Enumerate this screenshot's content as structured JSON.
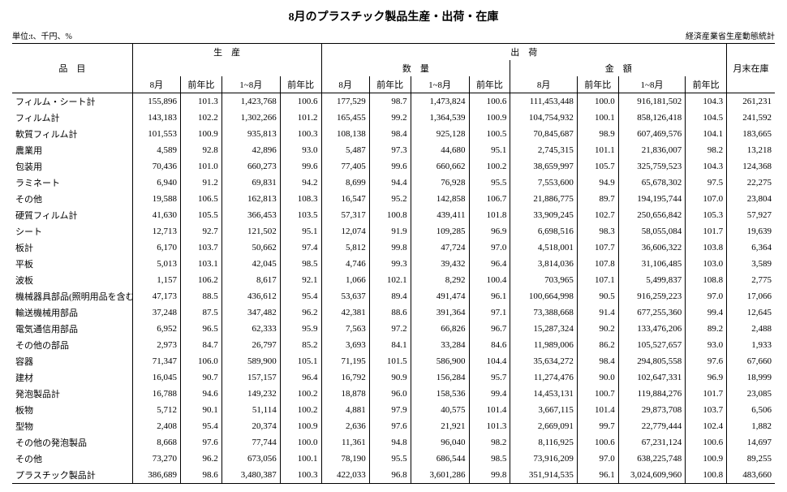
{
  "title": "8月のプラスチック製品生産・出荷・在庫",
  "unit": "単位:t、千円、%",
  "source": "経済産業省生産動態統計",
  "head": {
    "item": "品　目",
    "production": "生　産",
    "shipments": "出　荷",
    "qty": "数　量",
    "value": "金　額",
    "stock": "月末在庫",
    "aug": "8月",
    "yoy": "前年比",
    "jan_aug": "1~8月"
  },
  "rows": [
    [
      "フィルム・シート計",
      "155,896",
      "101.3",
      "1,423,768",
      "100.6",
      "177,529",
      "98.7",
      "1,473,824",
      "100.6",
      "111,453,448",
      "100.0",
      "916,181,502",
      "104.3",
      "261,231"
    ],
    [
      "フィルム計",
      "143,183",
      "102.2",
      "1,302,266",
      "101.2",
      "165,455",
      "99.2",
      "1,364,539",
      "100.9",
      "104,754,932",
      "100.1",
      "858,126,418",
      "104.5",
      "241,592"
    ],
    [
      "軟質フィルム計",
      "101,553",
      "100.9",
      "935,813",
      "100.3",
      "108,138",
      "98.4",
      "925,128",
      "100.5",
      "70,845,687",
      "98.9",
      "607,469,576",
      "104.1",
      "183,665"
    ],
    [
      "農業用",
      "4,589",
      "92.8",
      "42,896",
      "93.0",
      "5,487",
      "97.3",
      "44,680",
      "95.1",
      "2,745,315",
      "101.1",
      "21,836,007",
      "98.2",
      "13,218"
    ],
    [
      "包装用",
      "70,436",
      "101.0",
      "660,273",
      "99.6",
      "77,405",
      "99.6",
      "660,662",
      "100.2",
      "38,659,997",
      "105.7",
      "325,759,523",
      "104.3",
      "124,368"
    ],
    [
      "ラミネート",
      "6,940",
      "91.2",
      "69,831",
      "94.2",
      "8,699",
      "94.4",
      "76,928",
      "95.5",
      "7,553,600",
      "94.9",
      "65,678,302",
      "97.5",
      "22,275"
    ],
    [
      "その他",
      "19,588",
      "106.5",
      "162,813",
      "108.3",
      "16,547",
      "95.2",
      "142,858",
      "106.7",
      "21,886,775",
      "89.7",
      "194,195,744",
      "107.0",
      "23,804"
    ],
    [
      "硬質フィルム計",
      "41,630",
      "105.5",
      "366,453",
      "103.5",
      "57,317",
      "100.8",
      "439,411",
      "101.8",
      "33,909,245",
      "102.7",
      "250,656,842",
      "105.3",
      "57,927"
    ],
    [
      "シート",
      "12,713",
      "92.7",
      "121,502",
      "95.1",
      "12,074",
      "91.9",
      "109,285",
      "96.9",
      "6,698,516",
      "98.3",
      "58,055,084",
      "101.7",
      "19,639"
    ],
    [
      "板計",
      "6,170",
      "103.7",
      "50,662",
      "97.4",
      "5,812",
      "99.8",
      "47,724",
      "97.0",
      "4,518,001",
      "107.7",
      "36,606,322",
      "103.8",
      "6,364"
    ],
    [
      "平板",
      "5,013",
      "103.1",
      "42,045",
      "98.5",
      "4,746",
      "99.3",
      "39,432",
      "96.4",
      "3,814,036",
      "107.8",
      "31,106,485",
      "103.0",
      "3,589"
    ],
    [
      "波板",
      "1,157",
      "106.2",
      "8,617",
      "92.1",
      "1,066",
      "102.1",
      "8,292",
      "100.4",
      "703,965",
      "107.1",
      "5,499,837",
      "108.8",
      "2,775"
    ],
    [
      "機械器具部品(照明用品を含む)計",
      "47,173",
      "88.5",
      "436,612",
      "95.4",
      "53,637",
      "89.4",
      "491,474",
      "96.1",
      "100,664,998",
      "90.5",
      "916,259,223",
      "97.0",
      "17,066"
    ],
    [
      "輸送機械用部品",
      "37,248",
      "87.5",
      "347,482",
      "96.2",
      "42,381",
      "88.6",
      "391,364",
      "97.1",
      "73,388,668",
      "91.4",
      "677,255,360",
      "99.4",
      "12,645"
    ],
    [
      "電気通信用部品",
      "6,952",
      "96.5",
      "62,333",
      "95.9",
      "7,563",
      "97.2",
      "66,826",
      "96.7",
      "15,287,324",
      "90.2",
      "133,476,206",
      "89.2",
      "2,488"
    ],
    [
      "その他の部品",
      "2,973",
      "84.7",
      "26,797",
      "85.2",
      "3,693",
      "84.1",
      "33,284",
      "84.6",
      "11,989,006",
      "86.2",
      "105,527,657",
      "93.0",
      "1,933"
    ],
    [
      "容器",
      "71,347",
      "106.0",
      "589,900",
      "105.1",
      "71,195",
      "101.5",
      "586,900",
      "104.4",
      "35,634,272",
      "98.4",
      "294,805,558",
      "97.6",
      "67,660"
    ],
    [
      "建材",
      "16,045",
      "90.7",
      "157,157",
      "96.4",
      "16,792",
      "90.9",
      "156,284",
      "95.7",
      "11,274,476",
      "90.0",
      "102,647,331",
      "96.9",
      "18,999"
    ],
    [
      "発泡製品計",
      "16,788",
      "94.6",
      "149,232",
      "100.2",
      "18,878",
      "96.0",
      "158,536",
      "99.4",
      "14,453,131",
      "100.7",
      "119,884,276",
      "101.7",
      "23,085"
    ],
    [
      "板物",
      "5,712",
      "90.1",
      "51,114",
      "100.2",
      "4,881",
      "97.9",
      "40,575",
      "101.4",
      "3,667,115",
      "101.4",
      "29,873,708",
      "103.7",
      "6,506"
    ],
    [
      "型物",
      "2,408",
      "95.4",
      "20,374",
      "100.9",
      "2,636",
      "97.6",
      "21,921",
      "101.3",
      "2,669,091",
      "99.7",
      "22,779,444",
      "102.4",
      "1,882"
    ],
    [
      "その他の発泡製品",
      "8,668",
      "97.6",
      "77,744",
      "100.0",
      "11,361",
      "94.8",
      "96,040",
      "98.2",
      "8,116,925",
      "100.6",
      "67,231,124",
      "100.6",
      "14,697"
    ],
    [
      "その他",
      "73,270",
      "96.2",
      "673,056",
      "100.1",
      "78,190",
      "95.5",
      "686,544",
      "98.5",
      "73,916,209",
      "97.0",
      "638,225,748",
      "100.9",
      "89,255"
    ],
    [
      "プラスチック製品計",
      "386,689",
      "98.6",
      "3,480,387",
      "100.3",
      "422,033",
      "96.8",
      "3,601,286",
      "99.8",
      "351,914,535",
      "96.1",
      "3,024,609,960",
      "100.8",
      "483,660"
    ]
  ]
}
